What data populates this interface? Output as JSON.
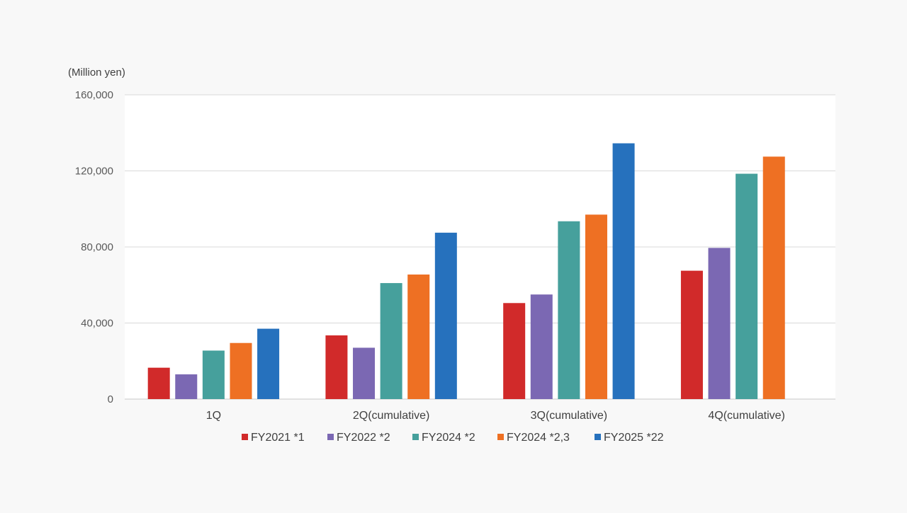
{
  "chart_data": {
    "type": "bar",
    "title": "",
    "xlabel": "",
    "ylabel": "",
    "unit_label": "(Million yen)",
    "ylim": [
      0,
      160000
    ],
    "yticks": [
      0,
      40000,
      80000,
      120000,
      160000
    ],
    "ytick_labels": [
      "0",
      "40,000",
      "80,000",
      "120,000",
      "160,000"
    ],
    "grid": true,
    "legend_position": "bottom",
    "categories": [
      "1Q",
      "2Q(cumulative)",
      "3Q(cumulative)",
      "4Q(cumulative)"
    ],
    "series": [
      {
        "name": "FY2021 *1",
        "color": "#d12a2a",
        "values": [
          16500,
          33500,
          50500,
          67500
        ]
      },
      {
        "name": "FY2022 *2",
        "color": "#7b68b3",
        "values": [
          13000,
          27000,
          55000,
          79500
        ]
      },
      {
        "name": "FY2024 *2",
        "color": "#46a09c",
        "values": [
          25500,
          61000,
          93500,
          118500
        ]
      },
      {
        "name": "FY2024 *2,3",
        "color": "#ee7023",
        "values": [
          29500,
          65500,
          97000,
          127500
        ]
      },
      {
        "name": "FY2025 *22",
        "color": "#2671bd",
        "values": [
          37000,
          87500,
          134500,
          null
        ]
      }
    ]
  }
}
